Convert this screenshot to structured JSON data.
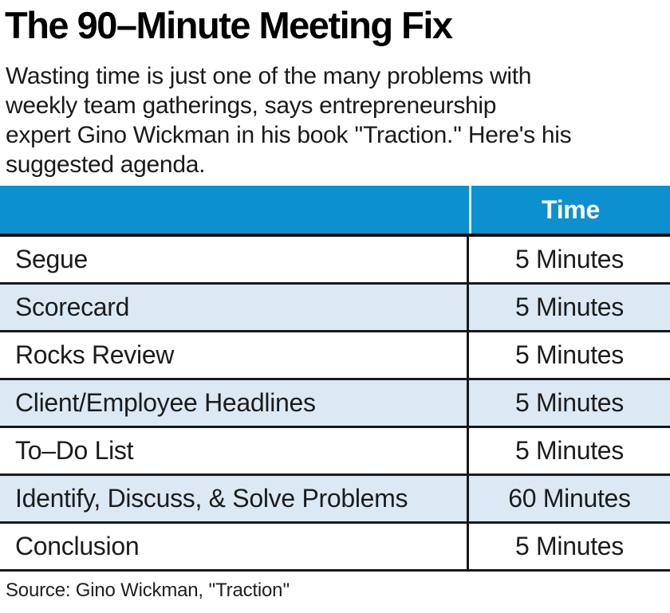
{
  "header": {
    "title": "The 90–Minute Meeting Fix",
    "subtitle_lines": [
      "Wasting time is just one of the many problems with",
      "weekly team gatherings, says entrepreneurship",
      "expert Gino Wickman in his book ''Traction.'' Here's his",
      "suggested agenda."
    ]
  },
  "table": {
    "time_header": "Time",
    "rows": [
      {
        "item": "Segue",
        "time": "5 Minutes"
      },
      {
        "item": "Scorecard",
        "time": "5 Minutes"
      },
      {
        "item": "Rocks Review",
        "time": "5 Minutes"
      },
      {
        "item": "Client/Employee Headlines",
        "time": "5 Minutes"
      },
      {
        "item": "To–Do List",
        "time": "5 Minutes"
      },
      {
        "item": "Identify, Discuss, & Solve Problems",
        "time": "60 Minutes"
      },
      {
        "item": "Conclusion",
        "time": "5 Minutes"
      }
    ]
  },
  "footer": {
    "source": "Source: Gino Wickman, ''Traction''"
  },
  "colors": {
    "header_blue": "#0c90d0",
    "row_alt_blue": "#dce9f5",
    "border_dark": "#191919",
    "header_text": "#ffffff"
  },
  "chart_data": {
    "type": "table",
    "title": "The 90–Minute Meeting Fix",
    "subtitle": "Wasting time is just one of the many problems with weekly team gatherings, says entrepreneurship expert Gino Wickman in his book ''Traction.'' Here's his suggested agenda.",
    "columns": [
      "",
      "Time"
    ],
    "rows": [
      [
        "Segue",
        "5 Minutes"
      ],
      [
        "Scorecard",
        "5 Minutes"
      ],
      [
        "Rocks Review",
        "5 Minutes"
      ],
      [
        "Client/Employee Headlines",
        "5 Minutes"
      ],
      [
        "To–Do List",
        "5 Minutes"
      ],
      [
        "Identify, Discuss, & Solve Problems",
        "60 Minutes"
      ],
      [
        "Conclusion",
        "5 Minutes"
      ]
    ],
    "source": "Source: Gino Wickman, ''Traction''",
    "layout_hints": {
      "header_row_background": "#0c90d0",
      "alternating_row_background": "#dce9f5",
      "time_column_alignment": "center"
    }
  }
}
